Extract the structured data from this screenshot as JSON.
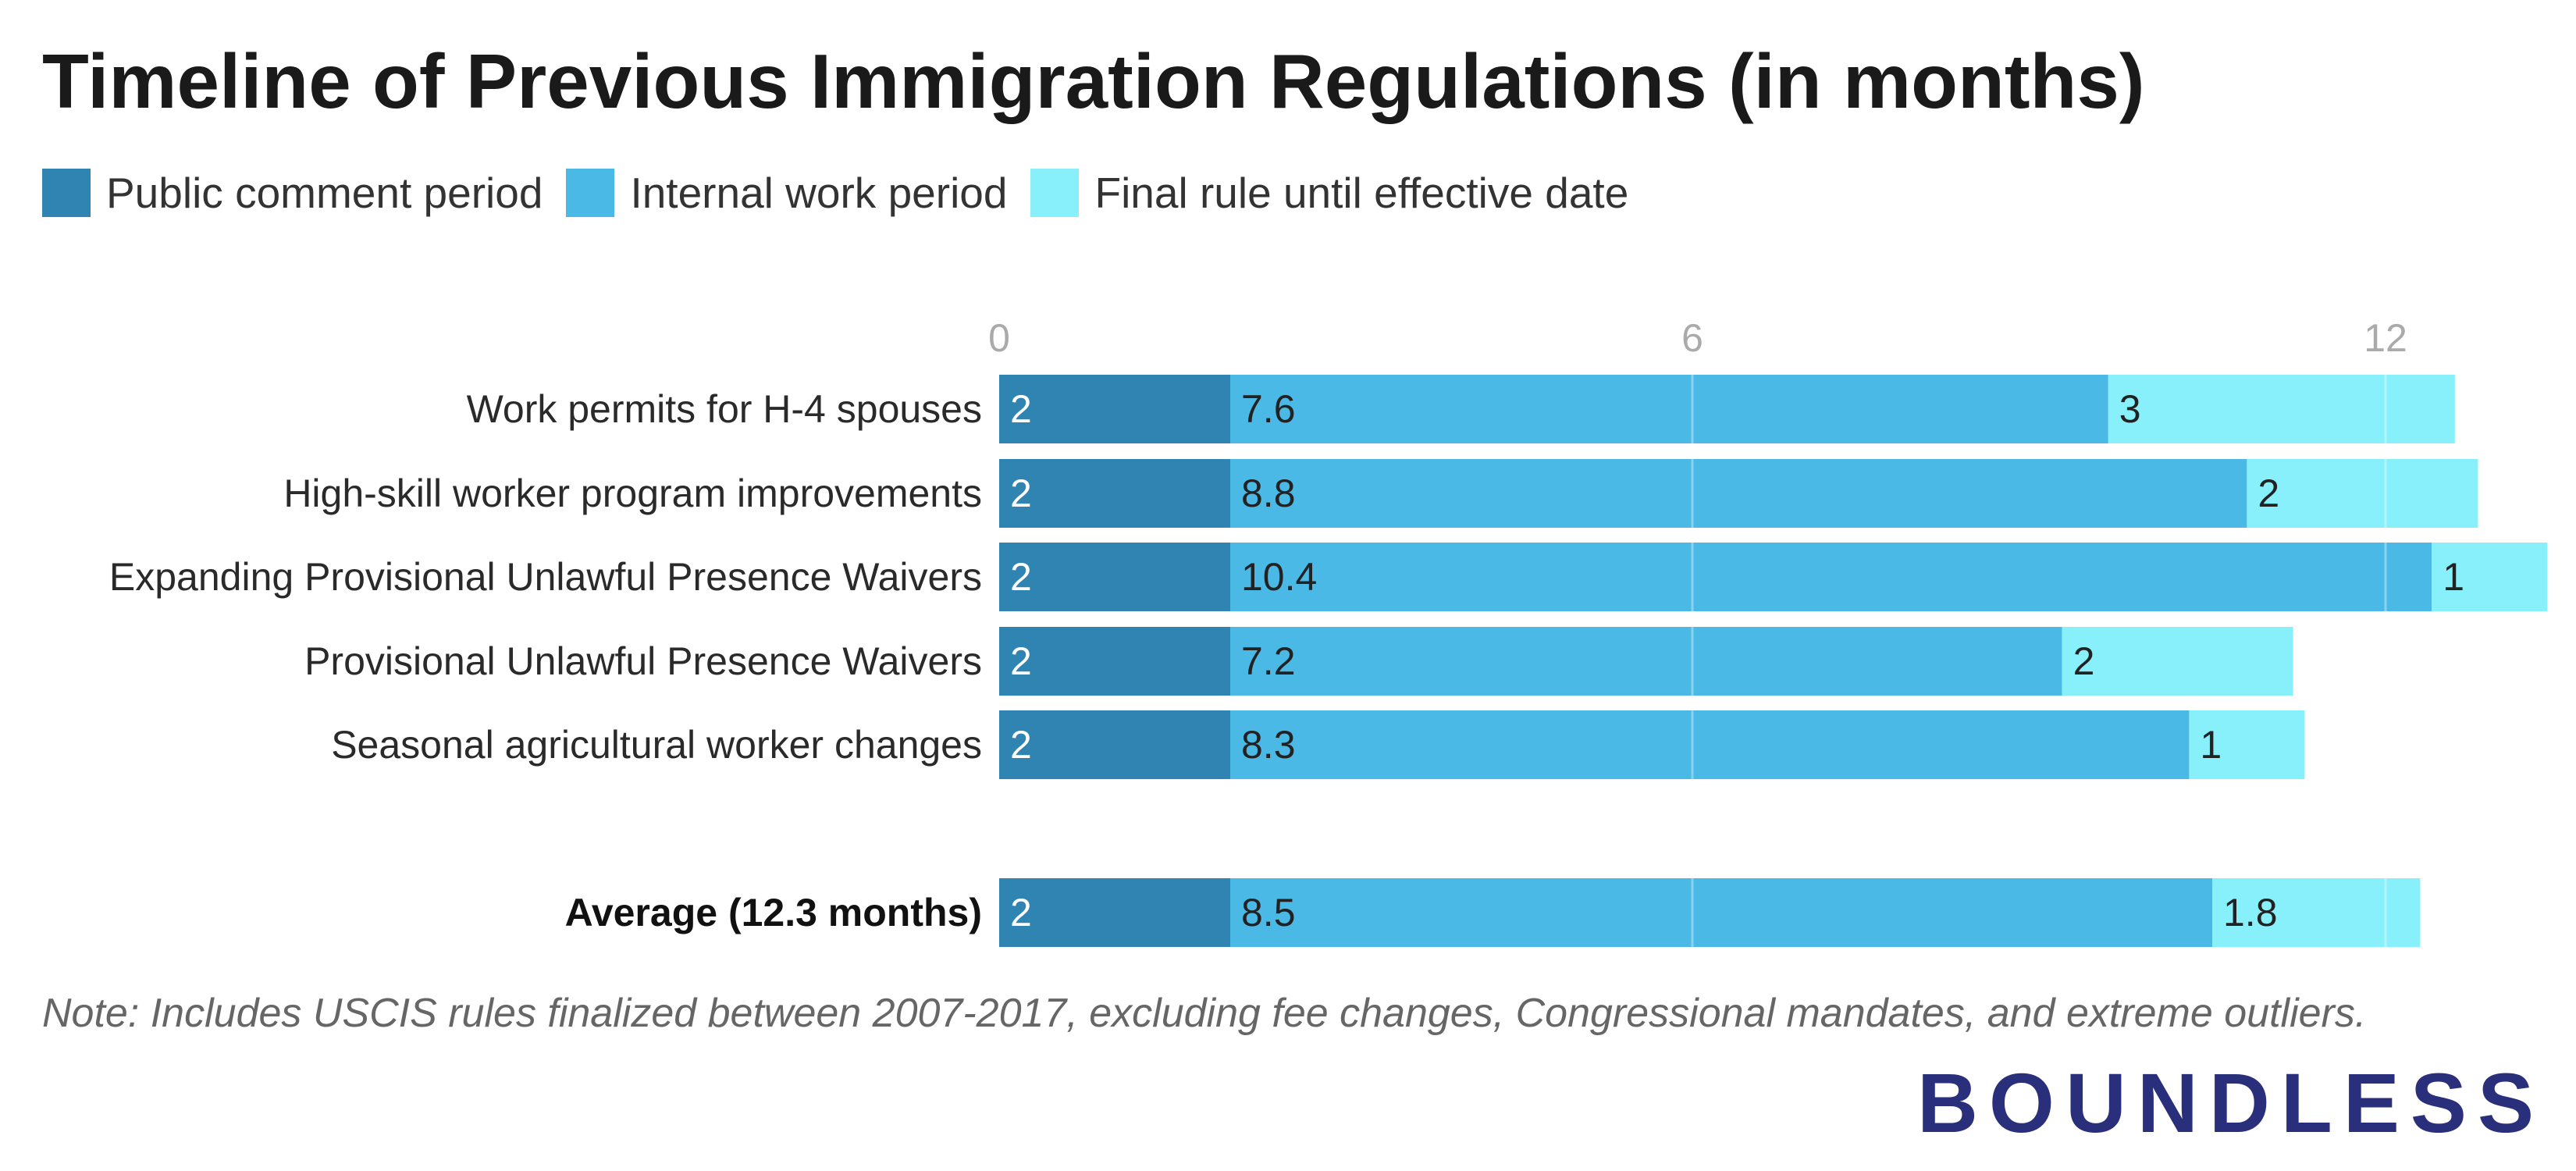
{
  "title": "Timeline of Previous Immigration Regulations (in months)",
  "legend": [
    {
      "label": "Public comment period",
      "color": "#2f84b1"
    },
    {
      "label": "Internal work period",
      "color": "#4bb9e5"
    },
    {
      "label": "Final rule until effective date",
      "color": "#87f0fb"
    }
  ],
  "chart_data": {
    "type": "bar",
    "orientation": "horizontal",
    "stacked": true,
    "title": "Timeline of Previous Immigration Regulations (in months)",
    "xlabel": "",
    "ylabel": "",
    "xlim": [
      0,
      13.8
    ],
    "ticks": [
      0,
      6,
      12
    ],
    "grid": true,
    "legend_position": "top-left",
    "categories": [
      "Work permits for H-4 spouses",
      "High-skill worker program improvements",
      "Expanding Provisional Unlawful Presence Waivers",
      "Provisional Unlawful Presence Waivers",
      "Seasonal agricultural worker changes",
      "Average (12.3 months)"
    ],
    "emphasized_categories": [
      "Average (12.3 months)"
    ],
    "series": [
      {
        "name": "Public comment period",
        "color": "#2f84b1",
        "values": [
          2,
          2,
          2,
          2,
          2,
          2
        ]
      },
      {
        "name": "Internal work period",
        "color": "#4bb9e5",
        "values": [
          7.6,
          8.8,
          10.4,
          7.2,
          8.3,
          8.5
        ]
      },
      {
        "name": "Final rule until effective date",
        "color": "#87f0fb",
        "values": [
          3,
          2,
          1,
          2,
          1,
          1.8
        ]
      }
    ],
    "label_color": "#222222",
    "first_series_label_color": "#ffffff"
  },
  "note": "Note: Includes USCIS rules finalized between 2007-2017, excluding fee changes, Congressional mandates, and extreme outliers.",
  "logo": {
    "text": "BOUNDLESS",
    "color": "#2a2f7c"
  }
}
